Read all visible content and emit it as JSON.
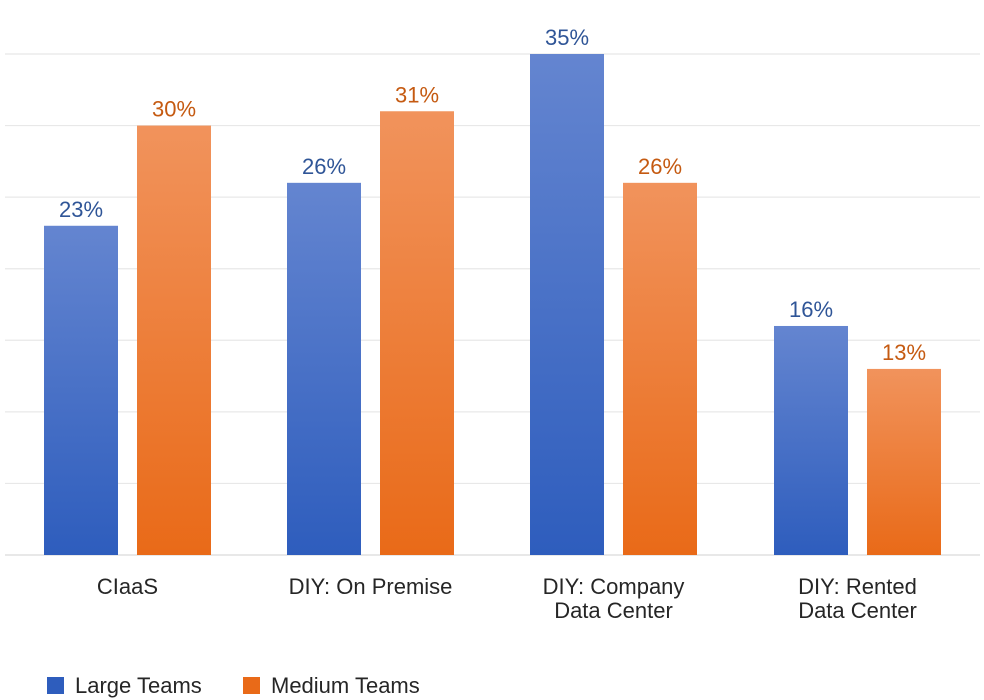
{
  "chart_data": {
    "type": "bar",
    "title": "",
    "xlabel": "",
    "ylabel": "",
    "ylim": [
      0,
      35
    ],
    "y_grid_step": 5,
    "grid": true,
    "legend_position": "bottom-left",
    "categories": [
      [
        "CIaaS"
      ],
      [
        "DIY: On Premise"
      ],
      [
        "DIY: Company",
        "Data Center"
      ],
      [
        "DIY: Rented",
        "Data Center"
      ]
    ],
    "series": [
      {
        "name": "Large Teams",
        "values": [
          23,
          26,
          35,
          16
        ],
        "labels": [
          "23%",
          "26%",
          "35%",
          "16%"
        ],
        "color": "#4472C4",
        "label_color": "#2F5597"
      },
      {
        "name": "Medium Teams",
        "values": [
          30,
          31,
          26,
          13
        ],
        "labels": [
          "30%",
          "31%",
          "26%",
          "13%"
        ],
        "color": "#ED7D31",
        "label_color": "#C55A11"
      }
    ]
  }
}
